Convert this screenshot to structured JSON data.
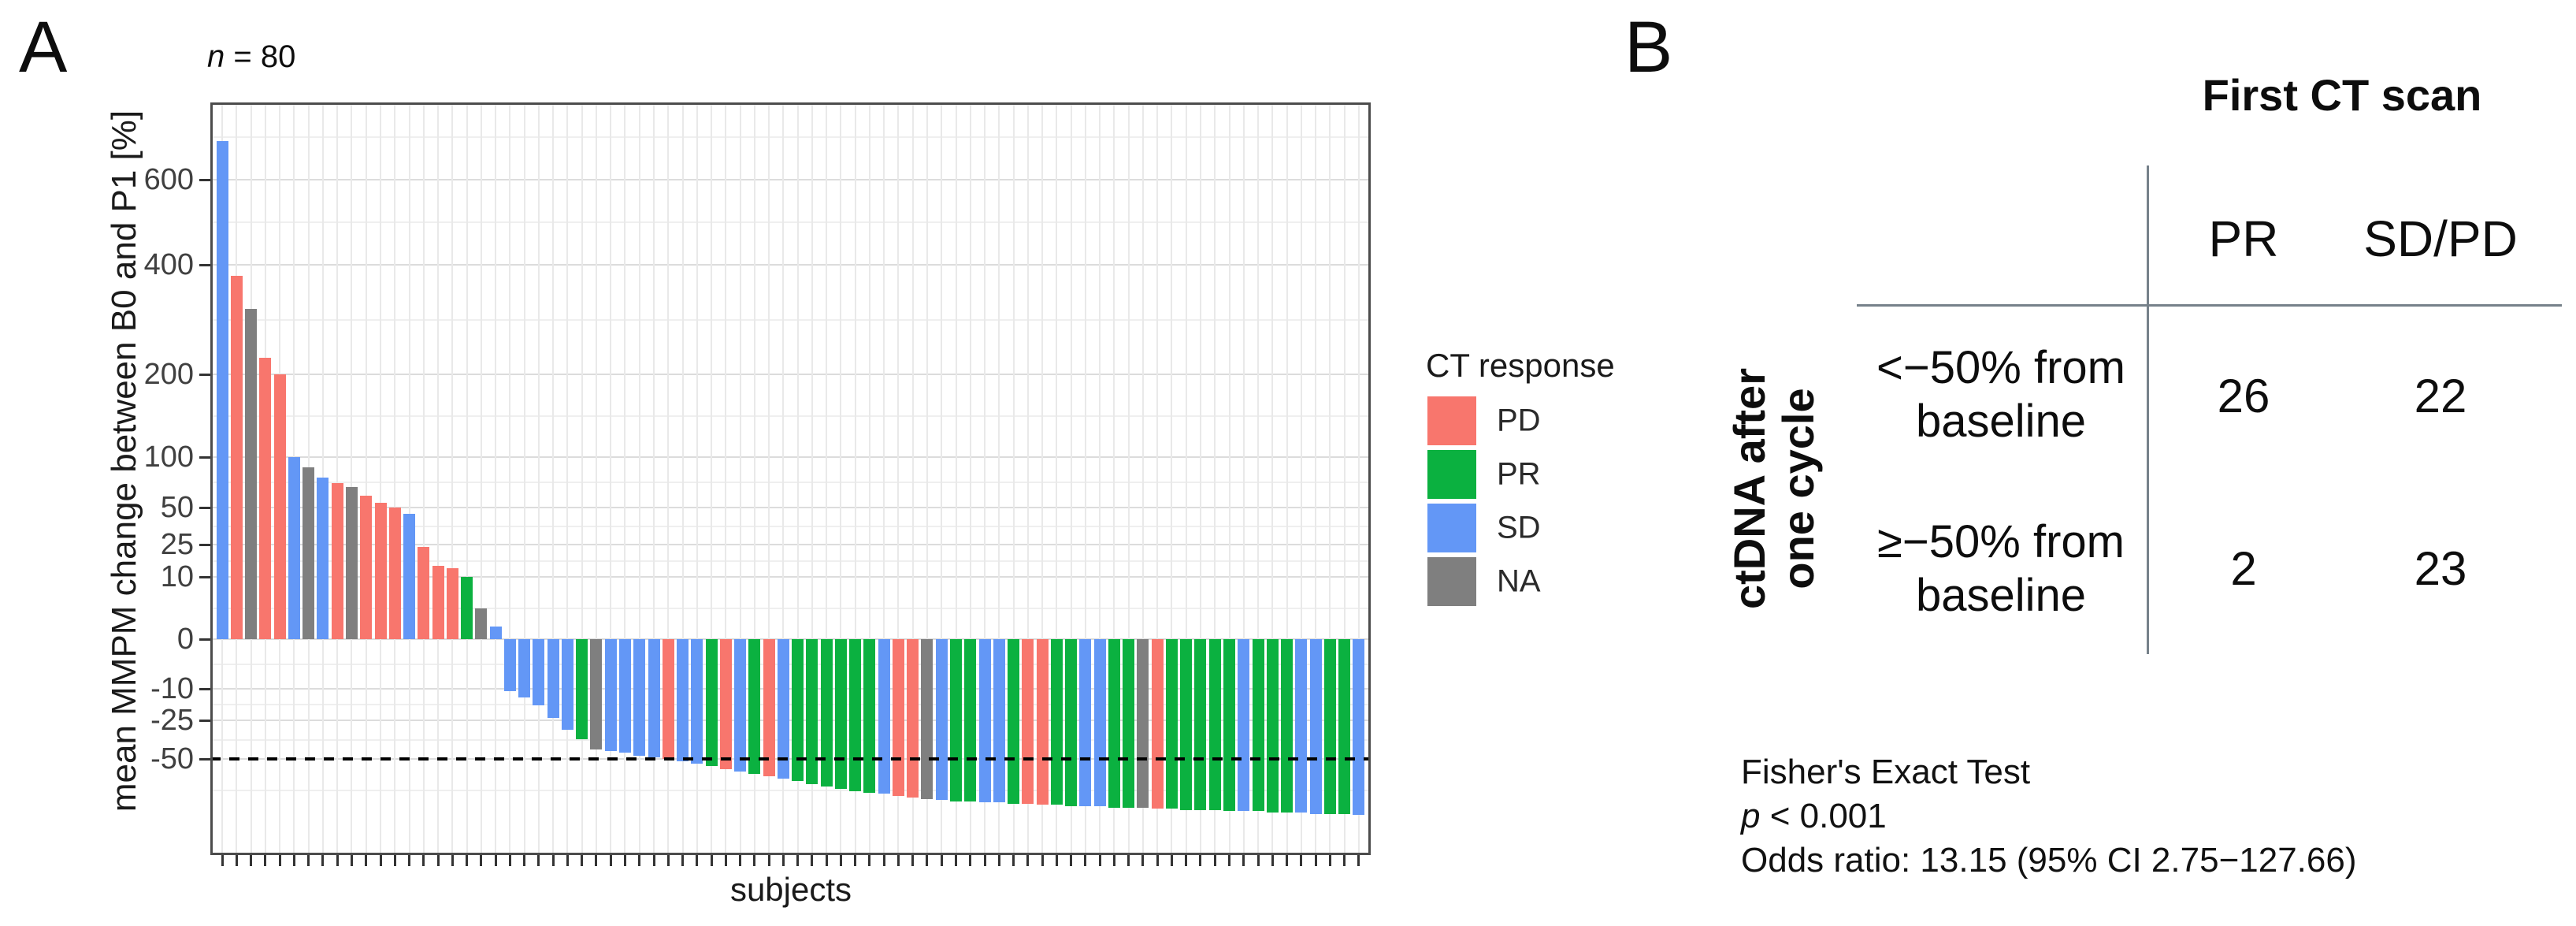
{
  "panel_a": {
    "label": "A",
    "title_n": "n",
    "title_rest": " = 80",
    "y_axis_label": "mean MMPM change between B0 and P1 [%]",
    "x_axis_label": "subjects",
    "legend": {
      "title": "CT response",
      "items": [
        {
          "label": "PD",
          "color": "#F8766D"
        },
        {
          "label": "PR",
          "color": "#0BB140"
        },
        {
          "label": "SD",
          "color": "#6397F6"
        },
        {
          "label": "NA",
          "color": "#7F7F7F"
        }
      ]
    },
    "chart_data": {
      "type": "bar",
      "title": "n = 80",
      "xlabel": "subjects",
      "ylabel": "mean MMPM change between B0 and P1 [%]",
      "n_subjects": 80,
      "y_scale": "pseudo-log symmetric",
      "y_ticks": [
        600,
        400,
        200,
        100,
        50,
        25,
        10,
        0,
        -10,
        -25,
        -50
      ],
      "reference_line": -50,
      "grid": true,
      "legend_position": "right",
      "color_map": {
        "PD": "#F8766D",
        "PR": "#0BB140",
        "SD": "#6397F6",
        "NA": "#7F7F7F"
      },
      "bars": [
        [
          690,
          "SD"
        ],
        [
          380,
          "PD"
        ],
        [
          320,
          "NA"
        ],
        [
          230,
          "PD"
        ],
        [
          200,
          "PD"
        ],
        [
          100,
          "SD"
        ],
        [
          90,
          "NA"
        ],
        [
          80,
          "SD"
        ],
        [
          74,
          "PD"
        ],
        [
          70,
          "NA"
        ],
        [
          62,
          "PD"
        ],
        [
          55,
          "PD"
        ],
        [
          50,
          "PD"
        ],
        [
          46,
          "SD"
        ],
        [
          24,
          "PD"
        ],
        [
          15,
          "PD"
        ],
        [
          14,
          "PD"
        ],
        [
          10,
          "PR"
        ],
        [
          5,
          "NA"
        ],
        [
          2,
          "SD"
        ],
        [
          -11,
          "SD"
        ],
        [
          -14,
          "SD"
        ],
        [
          -18,
          "SD"
        ],
        [
          -24,
          "SD"
        ],
        [
          -31,
          "SD"
        ],
        [
          -37,
          "PR"
        ],
        [
          -44,
          "NA"
        ],
        [
          -45,
          "SD"
        ],
        [
          -46,
          "SD"
        ],
        [
          -48,
          "SD"
        ],
        [
          -49,
          "SD"
        ],
        [
          -50,
          "PD"
        ],
        [
          -52,
          "SD"
        ],
        [
          -54,
          "SD"
        ],
        [
          -56,
          "PR"
        ],
        [
          -58,
          "PD"
        ],
        [
          -60,
          "SD"
        ],
        [
          -62,
          "PR"
        ],
        [
          -64,
          "PD"
        ],
        [
          -66,
          "SD"
        ],
        [
          -68,
          "PR"
        ],
        [
          -70,
          "PR"
        ],
        [
          -72,
          "PR"
        ],
        [
          -74,
          "PR"
        ],
        [
          -76,
          "PR"
        ],
        [
          -77,
          "PR"
        ],
        [
          -78,
          "SD"
        ],
        [
          -80,
          "PD"
        ],
        [
          -81,
          "PD"
        ],
        [
          -82,
          "NA"
        ],
        [
          -83,
          "SD"
        ],
        [
          -84,
          "PR"
        ],
        [
          -84,
          "PR"
        ],
        [
          -85,
          "SD"
        ],
        [
          -85,
          "SD"
        ],
        [
          -86,
          "PR"
        ],
        [
          -86,
          "PD"
        ],
        [
          -87,
          "PD"
        ],
        [
          -87,
          "PR"
        ],
        [
          -88,
          "PR"
        ],
        [
          -88,
          "SD"
        ],
        [
          -88,
          "SD"
        ],
        [
          -89,
          "PR"
        ],
        [
          -89,
          "PR"
        ],
        [
          -89,
          "NA"
        ],
        [
          -90,
          "PD"
        ],
        [
          -90,
          "PR"
        ],
        [
          -91,
          "PR"
        ],
        [
          -91,
          "PR"
        ],
        [
          -91,
          "PR"
        ],
        [
          -92,
          "PR"
        ],
        [
          -92,
          "SD"
        ],
        [
          -92,
          "PR"
        ],
        [
          -93,
          "PR"
        ],
        [
          -93,
          "PR"
        ],
        [
          -93,
          "SD"
        ],
        [
          -94,
          "SD"
        ],
        [
          -94,
          "PR"
        ],
        [
          -94,
          "PR"
        ],
        [
          -95,
          "SD"
        ]
      ]
    }
  },
  "panel_b": {
    "label": "B",
    "header": "First CT scan",
    "col_headers": [
      "PR",
      "SD/PD"
    ],
    "row_axis_label_line1": "ctDNA after",
    "row_axis_label_line2": "one cycle",
    "rows": [
      {
        "label_line1": "<−50% from",
        "label_line2": "baseline",
        "values": [
          "26",
          "22"
        ]
      },
      {
        "label_line1": "≥−50% from",
        "label_line2": "baseline",
        "values": [
          "2",
          "23"
        ]
      }
    ],
    "stats": {
      "line1": "Fisher's Exact Test",
      "p_italic": "p",
      "p_rest": " < 0.001",
      "line3": "Odds ratio: 13.15 (95% CI 2.75−127.66)"
    }
  }
}
